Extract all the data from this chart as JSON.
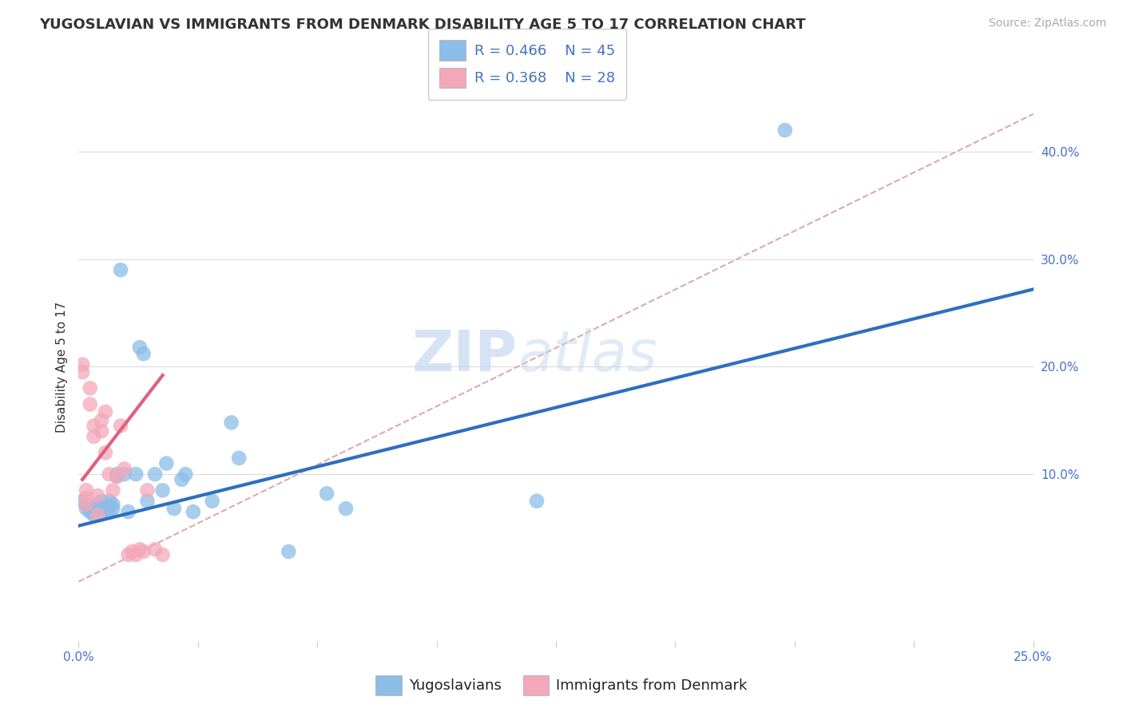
{
  "title": "YUGOSLAVIAN VS IMMIGRANTS FROM DENMARK DISABILITY AGE 5 TO 17 CORRELATION CHART",
  "source": "Source: ZipAtlas.com",
  "ylabel": "Disability Age 5 to 17",
  "legend_label1": "Yugoslavians",
  "legend_label2": "Immigrants from Denmark",
  "r1": 0.466,
  "n1": 45,
  "r2": 0.368,
  "n2": 28,
  "color_blue": "#8BBDE8",
  "color_pink": "#F4A7B9",
  "color_blue_line": "#2E6FBE",
  "color_pink_line": "#E06080",
  "color_blue_text": "#4472C4",
  "xmin": 0.0,
  "xmax": 0.25,
  "ymin": -0.055,
  "ymax": 0.455,
  "right_yticks": [
    0.1,
    0.2,
    0.3,
    0.4
  ],
  "right_yticklabels": [
    "10.0%",
    "20.0%",
    "30.0%",
    "40.0%"
  ],
  "blue_scatter_x": [
    0.001,
    0.002,
    0.002,
    0.003,
    0.003,
    0.003,
    0.004,
    0.004,
    0.005,
    0.005,
    0.005,
    0.006,
    0.006,
    0.006,
    0.007,
    0.007,
    0.008,
    0.008,
    0.008,
    0.009,
    0.009,
    0.01,
    0.01,
    0.011,
    0.012,
    0.013,
    0.015,
    0.016,
    0.017,
    0.018,
    0.02,
    0.022,
    0.023,
    0.025,
    0.027,
    0.028,
    0.03,
    0.035,
    0.04,
    0.042,
    0.055,
    0.065,
    0.07,
    0.12,
    0.185
  ],
  "blue_scatter_y": [
    0.075,
    0.068,
    0.072,
    0.07,
    0.065,
    0.068,
    0.065,
    0.062,
    0.07,
    0.068,
    0.072,
    0.068,
    0.075,
    0.07,
    0.065,
    0.068,
    0.075,
    0.07,
    0.065,
    0.072,
    0.068,
    0.1,
    0.098,
    0.29,
    0.1,
    0.065,
    0.1,
    0.218,
    0.212,
    0.075,
    0.1,
    0.085,
    0.11,
    0.068,
    0.095,
    0.1,
    0.065,
    0.075,
    0.148,
    0.115,
    0.028,
    0.082,
    0.068,
    0.075,
    0.42
  ],
  "pink_scatter_x": [
    0.001,
    0.001,
    0.002,
    0.002,
    0.002,
    0.003,
    0.003,
    0.004,
    0.004,
    0.005,
    0.005,
    0.006,
    0.006,
    0.007,
    0.007,
    0.008,
    0.009,
    0.01,
    0.011,
    0.012,
    0.013,
    0.014,
    0.015,
    0.016,
    0.017,
    0.018,
    0.02,
    0.022
  ],
  "pink_scatter_y": [
    0.195,
    0.202,
    0.085,
    0.078,
    0.072,
    0.18,
    0.165,
    0.145,
    0.135,
    0.08,
    0.062,
    0.15,
    0.14,
    0.158,
    0.12,
    0.1,
    0.085,
    0.098,
    0.145,
    0.105,
    0.025,
    0.028,
    0.025,
    0.03,
    0.028,
    0.085,
    0.03,
    0.025
  ],
  "blue_line_x": [
    0.0,
    0.25
  ],
  "blue_line_y": [
    0.052,
    0.272
  ],
  "pink_line_x": [
    0.001,
    0.022
  ],
  "pink_line_y": [
    0.095,
    0.192
  ],
  "diag_line_x": [
    0.0,
    0.25
  ],
  "diag_line_y": [
    0.0,
    0.435
  ],
  "diag_color": "#DDAAAA",
  "grid_color": "#DDDDDD",
  "background_color": "#FFFFFF",
  "watermark_zip": "ZIP",
  "watermark_atlas": "atlas",
  "title_fontsize": 13,
  "axis_label_fontsize": 11,
  "tick_fontsize": 11,
  "legend_fontsize": 13,
  "source_fontsize": 10
}
